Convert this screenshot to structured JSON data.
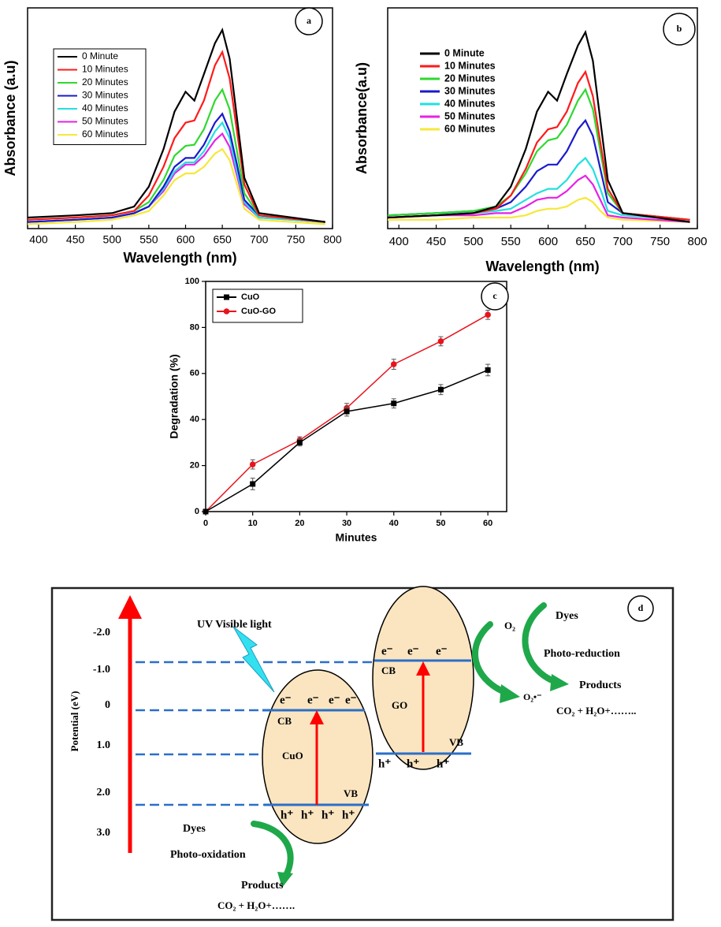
{
  "chart_data": [
    {
      "type": "line",
      "panel": "a",
      "xlabel": "Wavelength (nm)",
      "ylabel": "Absorbance (a.u)",
      "xlim": [
        385,
        800
      ],
      "xticks": [
        400,
        450,
        500,
        550,
        600,
        650,
        700,
        750,
        800
      ],
      "ylim": [
        0,
        1
      ],
      "legend": "upper left",
      "x": [
        385,
        450,
        500,
        530,
        550,
        570,
        585,
        600,
        612,
        625,
        640,
        650,
        660,
        670,
        680,
        700,
        790
      ],
      "series": [
        {
          "name": "0 Minute",
          "color": "#000000",
          "values": [
            0.05,
            0.06,
            0.07,
            0.1,
            0.19,
            0.36,
            0.53,
            0.62,
            0.58,
            0.7,
            0.84,
            0.9,
            0.77,
            0.5,
            0.23,
            0.07,
            0.03
          ]
        },
        {
          "name": "10 Minutes",
          "color": "#ff1a1a",
          "values": [
            0.04,
            0.05,
            0.06,
            0.08,
            0.15,
            0.28,
            0.41,
            0.48,
            0.49,
            0.58,
            0.74,
            0.8,
            0.68,
            0.44,
            0.2,
            0.06,
            0.03
          ]
        },
        {
          "name": "20 Minutes",
          "color": "#2fd82f",
          "values": [
            0.04,
            0.05,
            0.06,
            0.08,
            0.12,
            0.22,
            0.33,
            0.375,
            0.38,
            0.45,
            0.58,
            0.63,
            0.54,
            0.35,
            0.16,
            0.06,
            0.03
          ]
        },
        {
          "name": "30 Minutes",
          "color": "#1a1acc",
          "values": [
            0.03,
            0.04,
            0.05,
            0.07,
            0.1,
            0.19,
            0.28,
            0.32,
            0.32,
            0.38,
            0.48,
            0.52,
            0.44,
            0.29,
            0.13,
            0.06,
            0.03
          ]
        },
        {
          "name": "40 Minutes",
          "color": "#22e0e0",
          "values": [
            0.03,
            0.04,
            0.05,
            0.07,
            0.1,
            0.18,
            0.26,
            0.3,
            0.3,
            0.35,
            0.44,
            0.48,
            0.41,
            0.26,
            0.12,
            0.05,
            0.03
          ]
        },
        {
          "name": "50 Minutes",
          "color": "#e622e6",
          "values": [
            0.03,
            0.04,
            0.05,
            0.07,
            0.1,
            0.17,
            0.25,
            0.29,
            0.29,
            0.33,
            0.4,
            0.43,
            0.37,
            0.24,
            0.11,
            0.05,
            0.03
          ]
        },
        {
          "name": "60 Minutes",
          "color": "#f5e83a",
          "values": [
            0.02,
            0.03,
            0.04,
            0.06,
            0.08,
            0.15,
            0.22,
            0.25,
            0.25,
            0.28,
            0.34,
            0.36,
            0.31,
            0.2,
            0.09,
            0.04,
            0.02
          ]
        }
      ]
    },
    {
      "type": "line",
      "panel": "b",
      "xlabel": "Wavelength (nm)",
      "ylabel": "Absorbance(a.u)",
      "xlim": [
        385,
        800
      ],
      "xticks": [
        400,
        450,
        500,
        550,
        600,
        650,
        700,
        750,
        800
      ],
      "ylim": [
        0,
        1
      ],
      "legend": "upper left",
      "x": [
        385,
        450,
        500,
        530,
        550,
        570,
        585,
        600,
        612,
        625,
        640,
        650,
        660,
        670,
        680,
        700,
        790
      ],
      "series": [
        {
          "name": "0 Minute",
          "color": "#000000",
          "values": [
            0.05,
            0.06,
            0.07,
            0.1,
            0.19,
            0.36,
            0.53,
            0.62,
            0.58,
            0.7,
            0.83,
            0.89,
            0.76,
            0.49,
            0.22,
            0.07,
            0.03
          ]
        },
        {
          "name": "10 Minutes",
          "color": "#ff1a1a",
          "values": [
            0.05,
            0.06,
            0.07,
            0.09,
            0.15,
            0.27,
            0.39,
            0.45,
            0.46,
            0.53,
            0.66,
            0.71,
            0.6,
            0.39,
            0.18,
            0.07,
            0.04
          ]
        },
        {
          "name": "20 Minutes",
          "color": "#2fd82f",
          "values": [
            0.06,
            0.07,
            0.08,
            0.1,
            0.15,
            0.25,
            0.35,
            0.4,
            0.41,
            0.47,
            0.58,
            0.63,
            0.54,
            0.35,
            0.16,
            0.07,
            0.04
          ]
        },
        {
          "name": "30 Minutes",
          "color": "#1a1acc",
          "values": [
            0.06,
            0.07,
            0.08,
            0.09,
            0.12,
            0.19,
            0.26,
            0.29,
            0.29,
            0.35,
            0.45,
            0.49,
            0.42,
            0.27,
            0.12,
            0.07,
            0.04
          ]
        },
        {
          "name": "40 Minutes",
          "color": "#22e0e0",
          "values": [
            0.06,
            0.07,
            0.07,
            0.08,
            0.09,
            0.13,
            0.16,
            0.18,
            0.18,
            0.22,
            0.29,
            0.32,
            0.27,
            0.18,
            0.08,
            0.06,
            0.04
          ]
        },
        {
          "name": "50 Minutes",
          "color": "#e622e6",
          "values": [
            0.05,
            0.06,
            0.06,
            0.07,
            0.07,
            0.1,
            0.13,
            0.14,
            0.14,
            0.17,
            0.22,
            0.24,
            0.2,
            0.13,
            0.06,
            0.05,
            0.03
          ]
        },
        {
          "name": "60 Minutes",
          "color": "#f5e83a",
          "values": [
            0.04,
            0.04,
            0.05,
            0.05,
            0.05,
            0.06,
            0.08,
            0.09,
            0.09,
            0.1,
            0.13,
            0.14,
            0.12,
            0.08,
            0.05,
            0.04,
            0.03
          ]
        }
      ]
    },
    {
      "type": "line",
      "panel": "c",
      "xlabel": "Minutes",
      "ylabel": "Degradation (%)",
      "xlim": [
        0,
        64
      ],
      "xticks": [
        0,
        10,
        20,
        30,
        40,
        50,
        60
      ],
      "ylim": [
        0,
        100
      ],
      "yticks": [
        0,
        20,
        40,
        60,
        80,
        100
      ],
      "legend": "upper left",
      "x": [
        0,
        10,
        20,
        30,
        40,
        50,
        60
      ],
      "series": [
        {
          "name": "CuO",
          "color": "#000000",
          "marker": "square",
          "values": [
            0,
            12,
            30,
            43.5,
            47,
            53,
            61.5
          ],
          "errors": [
            0,
            2.5,
            1.5,
            2,
            2,
            2.2,
            2.5
          ]
        },
        {
          "name": "CuO-GO",
          "color": "#e8141c",
          "marker": "circle",
          "values": [
            0,
            20.5,
            31,
            45,
            64,
            74,
            85.5
          ],
          "errors": [
            0,
            2,
            1.5,
            2,
            2.2,
            2,
            2
          ]
        }
      ]
    }
  ],
  "diagram": {
    "panel": "d",
    "light": "UV Visible light",
    "axis_label": "Potential (eV)",
    "potentials": [
      "-2.0",
      "-1.0",
      "0",
      "1.0",
      "2.0",
      "3.0"
    ],
    "cuo": {
      "name": "CuO",
      "cb": "CB",
      "vb": "VB",
      "electrons": [
        "e⁻",
        "e⁻",
        "e⁻",
        "e⁻"
      ],
      "holes": [
        "h⁺",
        "h⁺",
        "h⁺",
        "h⁺"
      ]
    },
    "go": {
      "name": "GO",
      "cb": "CB",
      "vb": "VB",
      "electrons": [
        "e⁻",
        "e⁻",
        "e⁻"
      ],
      "holes": [
        "h⁺",
        "h⁺",
        "h⁺"
      ]
    },
    "reduction": {
      "o2": "O₂",
      "dyes": "Dyes",
      "process": "Photo-reduction",
      "products": "Products",
      "result": "CO₂ + H₂O+……..",
      "radical": "O₂•⁻"
    },
    "oxidation": {
      "dyes": "Dyes",
      "process": "Photo-oxidation",
      "products": "Products",
      "result": "CO₂ + H₂O+……."
    }
  }
}
